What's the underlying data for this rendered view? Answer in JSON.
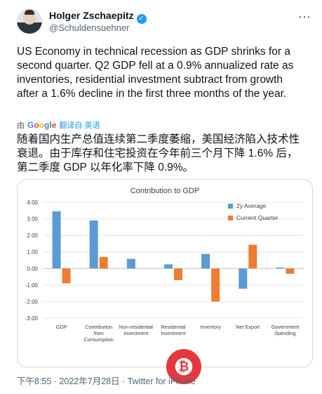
{
  "tweet": {
    "author_name": "Holger Zschaepitz",
    "handle": "@Schuldensuehner",
    "more_icon": "⋯",
    "text": "US Economy in technical recession as GDP shrinks for a second quarter. Q2 GDP fell at a 0.9% annualized rate as inventories, residential investment subtract from growth after a 1.6% decline in the first three months of the year.",
    "translate_by": "由",
    "translate_brand": [
      "G",
      "o",
      "o",
      "g",
      "l",
      "e"
    ],
    "translate_label": "翻译自 英语",
    "translated_text": "随着国内生产总值连续第二季度萎缩，美国经济陷入技术性衰退。由于库存和住宅投资在今年前三个月下降 1.6% 后，第二季度 GDP 以年化率下降 0.9%。",
    "meta": "下午8:55 · 2022年7月28日 · Twitter for iPhone"
  },
  "colors": {
    "accent": "#1d9bf0",
    "series1": "#5b9bd5",
    "series2": "#ed7d31",
    "watermark": "#e1242a"
  },
  "chart_data": {
    "type": "bar",
    "title": "Contribution to GDP",
    "categories": [
      [
        "GDP"
      ],
      [
        "Contribution",
        "from",
        "Consumption"
      ],
      [
        "Non-residential",
        "Investment"
      ],
      [
        "Residential",
        "Investment"
      ],
      [
        "Inventory"
      ],
      [
        "Net Export"
      ],
      [
        "Government",
        "Spending"
      ]
    ],
    "series": [
      {
        "name": "2y Average",
        "values": [
          3.45,
          2.9,
          0.58,
          0.25,
          0.88,
          -1.22,
          0.06
        ]
      },
      {
        "name": "Current Quarter",
        "values": [
          -0.9,
          0.7,
          0.0,
          -0.7,
          -2.0,
          1.43,
          -0.32
        ]
      }
    ],
    "ylim": [
      -3.0,
      4.0
    ],
    "yticks": [
      "4.00",
      "3.00",
      "2.00",
      "1.00",
      "0.00",
      "-1.00",
      "-2.00",
      "-3.00"
    ],
    "ytick_values": [
      4,
      3,
      2,
      1,
      0,
      -1,
      -2,
      -3
    ],
    "grid": true,
    "legend": "top-right"
  }
}
